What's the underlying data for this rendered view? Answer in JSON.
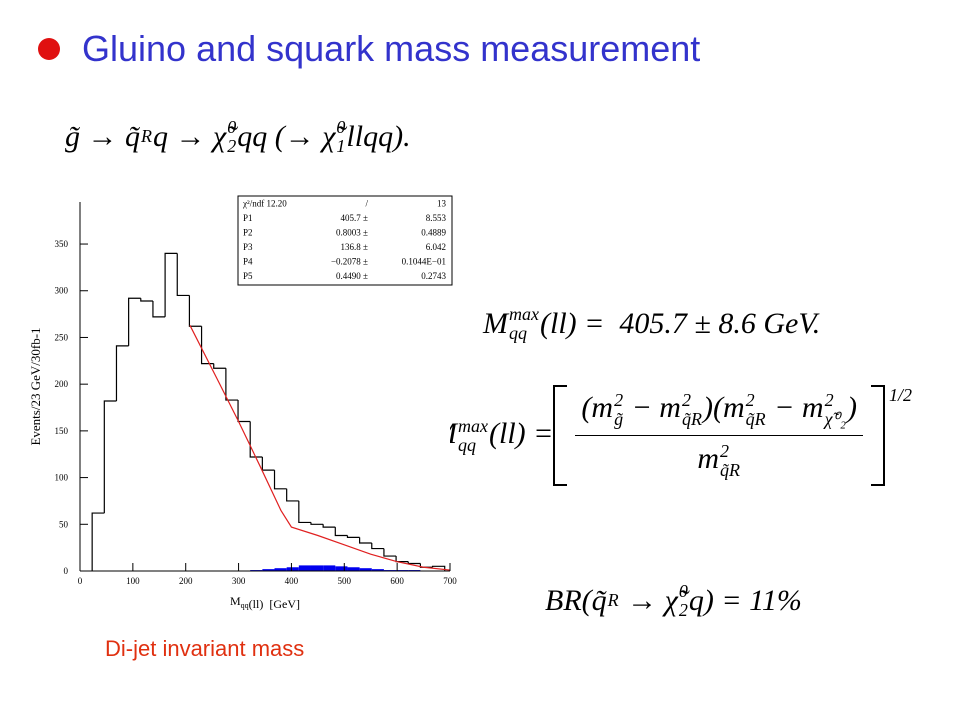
{
  "title": "Gluino and squark mass measurement",
  "decay_chain": [
    "g̃ → q̃",
    {
      "sub": "R"
    },
    "q → χ̃",
    {
      "sup": "0",
      "sub": "2"
    },
    "qq (→ χ̃",
    {
      "sup": "0",
      "sub": "1"
    },
    "llqq)."
  ],
  "mass_result": [
    "M",
    {
      "sup": "max",
      "sub": "qq"
    },
    "(ll) =  405.7 ± 8.6 GeV."
  ],
  "edge_formula": {
    "lhs": [
      "M",
      {
        "sup": "max",
        "sub": "qq"
      },
      "(ll) ="
    ],
    "numerator": [
      "(m",
      {
        "sup": "2",
        "sub": "g̃"
      },
      " − m",
      {
        "sup": "2",
        "sub": "q̃R"
      },
      ")(m",
      {
        "sup": "2",
        "sub": "q̃R"
      },
      " − m",
      {
        "sup": "2",
        "sub": "χ̃⁰₂"
      },
      ")"
    ],
    "denominator": [
      "m",
      {
        "sup": "2",
        "sub": "q̃R"
      }
    ],
    "exponent": "1/2"
  },
  "branching_ratio": [
    "BR(q̃",
    {
      "sub": "R"
    },
    " → χ̃",
    {
      "sup": "0",
      "sub": "2"
    },
    "q) = 11%"
  ],
  "caption": "Di-jet invariant mass",
  "chart_data": {
    "type": "histogram",
    "ylabel": "Events/23 GeV/30fb-1",
    "xlabel": [
      "M",
      {
        "sub": "qq"
      },
      "(ll)  [GeV]"
    ],
    "bins": [
      23,
      46,
      69,
      92,
      115,
      138,
      161,
      184,
      207,
      230,
      253,
      276,
      299,
      322,
      345,
      368,
      391,
      414,
      437,
      460,
      483,
      506,
      529,
      552,
      575,
      598,
      621,
      644,
      667,
      690
    ],
    "values": [
      62,
      182,
      241,
      292,
      289,
      272,
      340,
      295,
      262,
      222,
      217,
      183,
      160,
      122,
      108,
      88,
      75,
      52,
      50,
      47,
      38,
      36,
      30,
      24,
      16,
      10,
      8,
      4,
      5
    ],
    "color": "#000000",
    "background": {
      "color": "#0000ee",
      "values": [
        0,
        0,
        0,
        0,
        0,
        0,
        0,
        0,
        0,
        0,
        0,
        0,
        0,
        1,
        2,
        3,
        4,
        6,
        6,
        6,
        5,
        4,
        3,
        2,
        1,
        1,
        1,
        0,
        0
      ]
    },
    "fit": {
      "color": "#e02020",
      "x": [
        208,
        260,
        300,
        340,
        380,
        400,
        450,
        500,
        550,
        600,
        650,
        700
      ],
      "y": [
        263,
        205,
        160,
        113,
        65,
        47,
        38,
        28,
        18,
        10,
        4,
        1
      ]
    },
    "xlim": [
      0,
      700
    ],
    "ylim": [
      0,
      395
    ],
    "xticks": [
      0,
      100,
      200,
      300,
      400,
      500,
      600,
      700
    ],
    "yticks": [
      0,
      50,
      100,
      150,
      200,
      250,
      300,
      350
    ],
    "stats": [
      [
        "χ²/ndf 12.20",
        "/",
        "13"
      ],
      [
        "P1",
        "405.7 ±",
        "8.553"
      ],
      [
        "P2",
        "0.8003 ±",
        "0.4889"
      ],
      [
        "P3",
        "136.8 ±",
        "6.042"
      ],
      [
        "P4",
        "−0.2078 ±",
        "0.1044E−01"
      ],
      [
        "P5",
        "0.4490 ±",
        "0.2743"
      ]
    ]
  }
}
